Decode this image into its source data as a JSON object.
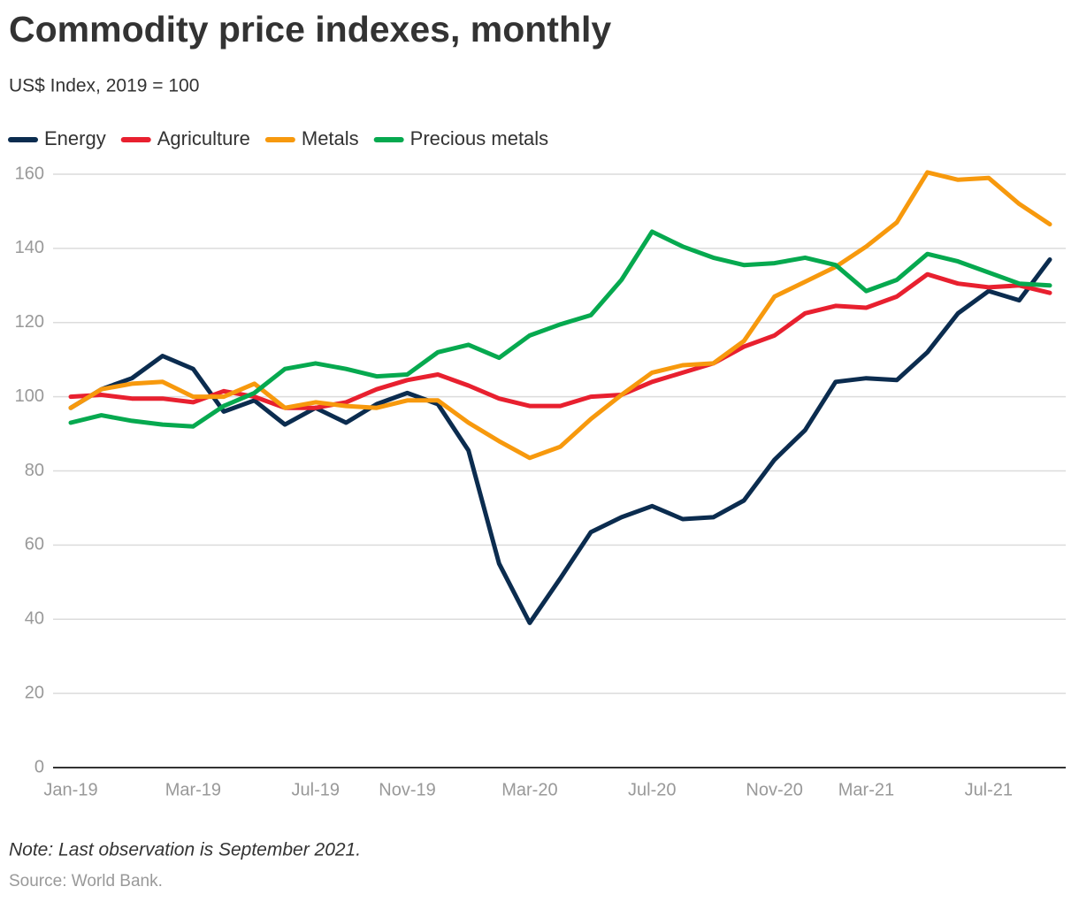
{
  "chart_data": {
    "type": "line",
    "title": "Commodity price indexes, monthly",
    "subtitle": "US$ Index, 2019 = 100",
    "note": "Note: Last observation is September 2021.",
    "source": "Source: World Bank.",
    "categories": [
      "Jan-19",
      null,
      null,
      null,
      "Mar-19",
      null,
      null,
      null,
      "Jul-19",
      null,
      null,
      "Nov-19",
      null,
      null,
      null,
      "Mar-20",
      null,
      null,
      null,
      "Jul-20",
      null,
      null,
      null,
      "Nov-20",
      null,
      null,
      "Mar-21",
      null,
      null,
      null,
      "Jul-21",
      null,
      null
    ],
    "series": [
      {
        "name": "Energy",
        "color": "#0b2c4f",
        "values": [
          97,
          102,
          105,
          111,
          107.5,
          96,
          99,
          92.5,
          97,
          93,
          98,
          101,
          98,
          85.5,
          55,
          39,
          51,
          63.5,
          67.5,
          70.5,
          67,
          67.5,
          72,
          83,
          91,
          104,
          105,
          104.5,
          112,
          122.5,
          128.5,
          126,
          137
        ]
      },
      {
        "name": "Agriculture",
        "color": "#e8202f",
        "values": [
          100,
          100.5,
          99.5,
          99.5,
          98.5,
          101.5,
          100,
          97,
          97,
          98.5,
          102,
          104.5,
          106,
          103,
          99.5,
          97.5,
          97.5,
          100,
          100.5,
          104,
          106.5,
          109,
          113.5,
          116.5,
          122.5,
          124.5,
          124,
          127,
          133,
          130.5,
          129.5,
          130,
          128
        ]
      },
      {
        "name": "Metals",
        "color": "#f7990d",
        "values": [
          97,
          102,
          103.5,
          104,
          100,
          100,
          103.5,
          97,
          98.5,
          97.5,
          97,
          99,
          99,
          93,
          88,
          83.5,
          86.5,
          94,
          100.5,
          106.5,
          108.5,
          109,
          115,
          127,
          131,
          135,
          140.5,
          147,
          160.5,
          158.5,
          159,
          152,
          146.5
        ]
      },
      {
        "name": "Precious metals",
        "color": "#06a94f",
        "values": [
          93,
          95,
          93.5,
          92.5,
          92,
          97.5,
          101,
          107.5,
          109,
          107.5,
          105.5,
          106,
          112,
          114,
          110.5,
          116.5,
          119.5,
          122,
          131.5,
          144.5,
          140.5,
          137.5,
          135.5,
          136,
          137.5,
          135.5,
          128.5,
          131.5,
          138.5,
          136.5,
          133.5,
          130.5,
          130
        ]
      }
    ],
    "ylim": [
      0,
      160
    ],
    "yticks": [
      0,
      20,
      40,
      60,
      80,
      100,
      120,
      140,
      160
    ],
    "grid": true
  }
}
